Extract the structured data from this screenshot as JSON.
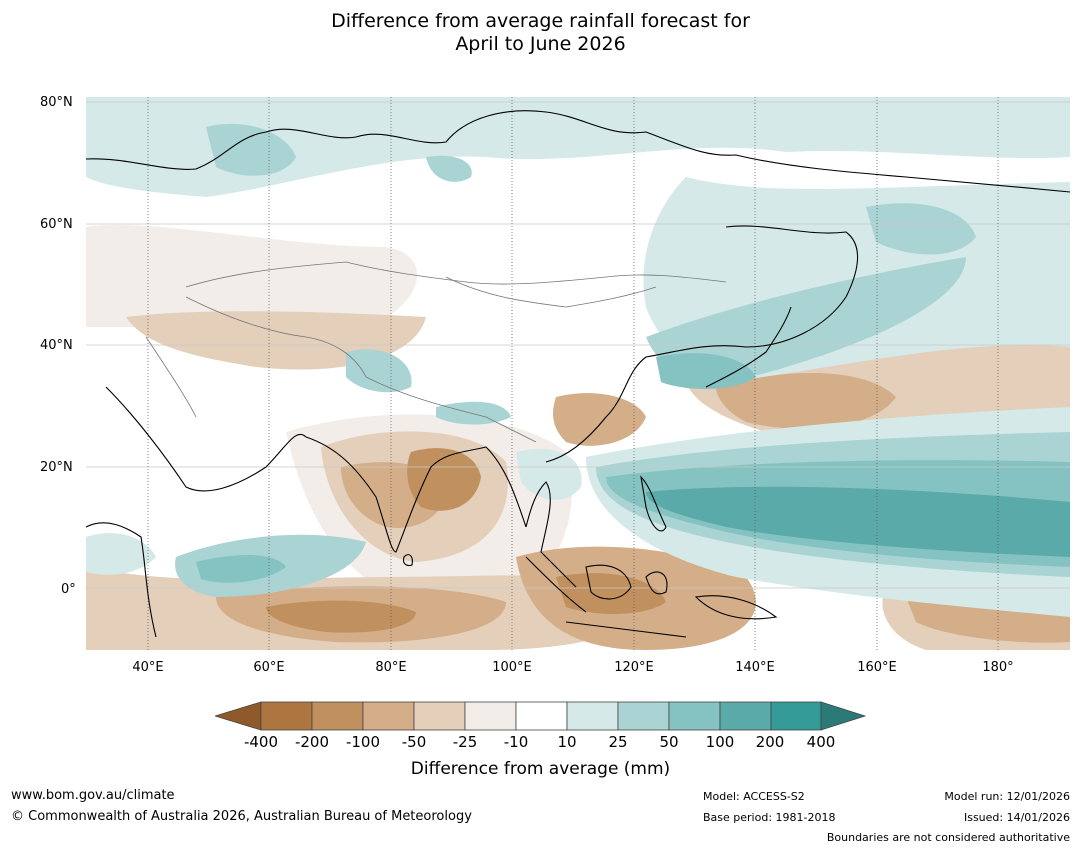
{
  "title": {
    "line1": "Difference from average rainfall forecast for",
    "line2": "April to June 2026"
  },
  "map": {
    "lat_labels": [
      "80°N",
      "60°N",
      "40°N",
      "20°N",
      "0°"
    ],
    "lon_labels": [
      "40°E",
      "60°E",
      "80°E",
      "100°E",
      "120°E",
      "140°E",
      "160°E",
      "180°"
    ],
    "colors": {
      "dry_extreme": "#8f5a2a",
      "dry_400": "#ad7640",
      "dry_200": "#c0915f",
      "dry_100": "#d3ae88",
      "dry_50": "#e3cfba",
      "dry_25": "#f2ede8",
      "neutral": "#ffffff",
      "wet_10": "#d4e9e8",
      "wet_25": "#a9d4d3",
      "wet_50": "#85c3c2",
      "wet_100": "#5aaaa9",
      "wet_200": "#339a98",
      "wet_extreme": "#2b7a78"
    }
  },
  "colorbar": {
    "ticks": [
      "-400",
      "-200",
      "-100",
      "-50",
      "-25",
      "-10",
      "10",
      "25",
      "50",
      "100",
      "200",
      "400"
    ],
    "title": "Difference from average (mm)"
  },
  "footer": {
    "website": "www.bom.gov.au/climate",
    "copyright": "© Commonwealth of Australia 2026, Australian Bureau of Meteorology",
    "model": "Model: ACCESS-S2",
    "base_period": "Base period: 1981-2018",
    "model_run": "Model run: 12/01/2026",
    "issued": "Issued: 14/01/2026",
    "disclaimer": "Boundaries are not considered authoritative"
  }
}
